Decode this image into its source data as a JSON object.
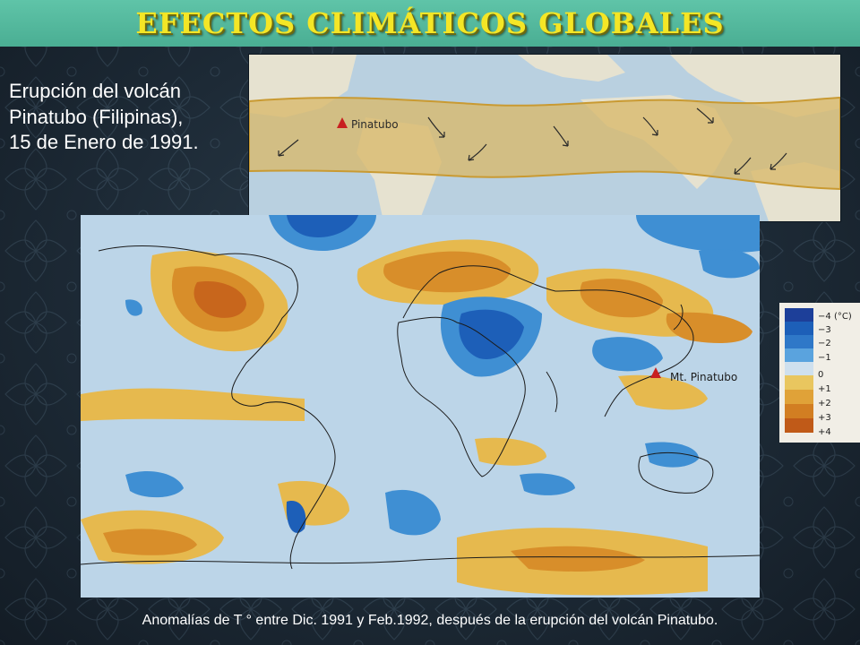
{
  "slide": {
    "title": "EFECTOS CLIMÁTICOS GLOBALES",
    "intro_lines": [
      "Erupción del volcán",
      "Pinatubo (Filipinas),",
      "15 de Enero de 1991."
    ],
    "caption": "Anomalías de T ° entre Dic. 1991 y Feb.1992, después de la erupción del volcán Pinatubo."
  },
  "band_map": {
    "volcano_label": "Pinatubo",
    "colors": {
      "ocean": "#b9d0e0",
      "land": "#e6e2d0",
      "band": "#d8b86a",
      "band_edge": "#c99a32",
      "volcano": "#c82020"
    }
  },
  "anomaly_map": {
    "volcano_label": "Mt. Pinatubo",
    "colors": {
      "neutral": "#bcd5e8",
      "cool1": "#3f8fd3",
      "cool2": "#1d5fb8",
      "warm1": "#e6b94e",
      "warm2": "#d88e2a",
      "warm3": "#c8661c",
      "coast": "#1b1b1b"
    }
  },
  "legend": {
    "unit_label": "(°C)",
    "levels": [
      {
        "label": "−4",
        "color": "#1d3f99"
      },
      {
        "label": "−3",
        "color": "#1d5fb8"
      },
      {
        "label": "−2",
        "color": "#2f78c8"
      },
      {
        "label": "−1",
        "color": "#5aa3de"
      },
      {
        "label": "0",
        "color": "#cfe0ee"
      },
      {
        "label": "+1",
        "color": "#e9c65f"
      },
      {
        "label": "+2",
        "color": "#e0a238"
      },
      {
        "label": "+3",
        "color": "#d27e22"
      },
      {
        "label": "+4",
        "color": "#c05a18"
      }
    ]
  }
}
